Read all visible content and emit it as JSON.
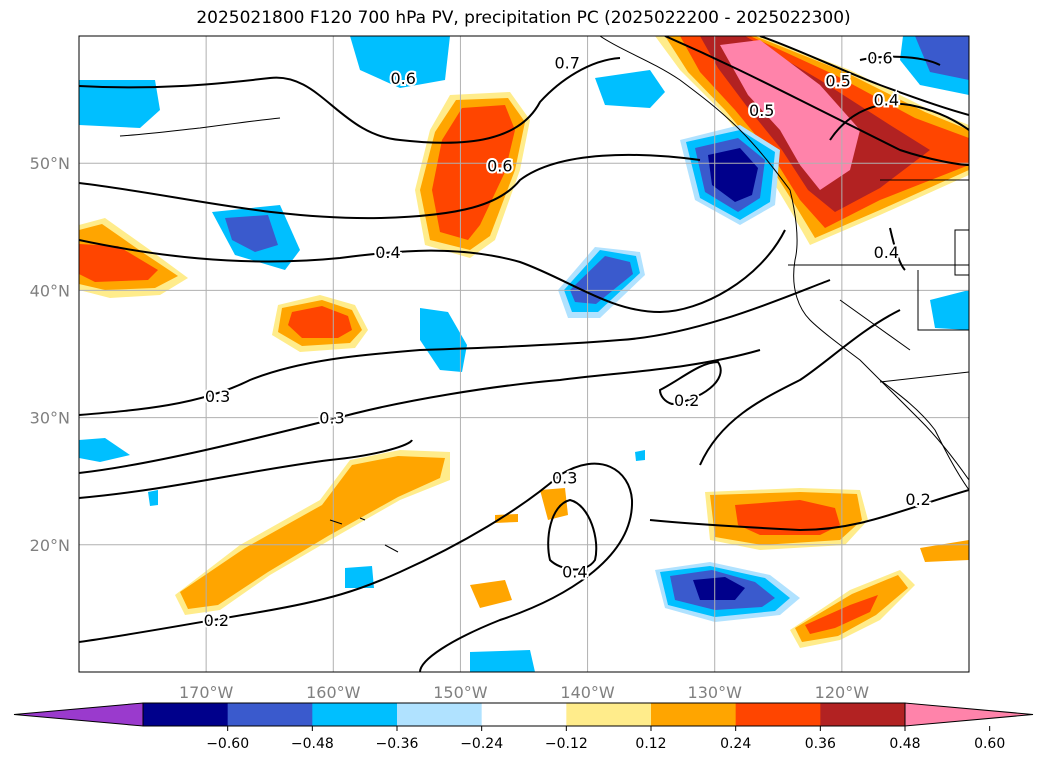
{
  "title": "2025021800 F120 700 hPa PV, precipitation PC (2025022200 - 2025022300)",
  "lat_labels": [
    {
      "text": "50°N",
      "lat": 50
    },
    {
      "text": "40°N",
      "lat": 40
    },
    {
      "text": "30°N",
      "lat": 30
    },
    {
      "text": "20°N",
      "lat": 20
    }
  ],
  "lon_labels": [
    {
      "text": "170°W",
      "lon": -170
    },
    {
      "text": "160°W",
      "lon": -160
    },
    {
      "text": "150°W",
      "lon": -150
    },
    {
      "text": "140°W",
      "lon": -140
    },
    {
      "text": "130°W",
      "lon": -130
    },
    {
      "text": "120°W",
      "lon": -120
    }
  ],
  "contour_labels": [
    {
      "text": "0.6",
      "lon": -154.5,
      "lat": 56.7
    },
    {
      "text": "0.7",
      "lon": -141.6,
      "lat": 57.9
    },
    {
      "text": "0.6",
      "lon": -146.9,
      "lat": 49.8
    },
    {
      "text": "0.4",
      "lon": -155.7,
      "lat": 43.0
    },
    {
      "text": "0.5",
      "lon": -126.3,
      "lat": 54.2
    },
    {
      "text": "0.5",
      "lon": -120.3,
      "lat": 56.5
    },
    {
      "text": "0.6",
      "lon": -117.0,
      "lat": 58.3
    },
    {
      "text": "0.4",
      "lon": -116.5,
      "lat": 55.0
    },
    {
      "text": "0.4",
      "lon": -116.5,
      "lat": 43.0
    },
    {
      "text": "0.3",
      "lon": -169.1,
      "lat": 31.7
    },
    {
      "text": "0.3",
      "lon": -160.1,
      "lat": 30.0
    },
    {
      "text": "0.2",
      "lon": -132.2,
      "lat": 31.4
    },
    {
      "text": "0.3",
      "lon": -141.8,
      "lat": 25.3
    },
    {
      "text": "0.4",
      "lon": -141.0,
      "lat": 17.9
    },
    {
      "text": "0.2",
      "lon": -169.2,
      "lat": 14.1
    },
    {
      "text": "0.2",
      "lon": -114.0,
      "lat": 23.6
    }
  ],
  "colorbar": {
    "colors": [
      "#9a3acd",
      "#00008b",
      "#3a5acd",
      "#00bfff",
      "#b0e2ff",
      "#ffffff",
      "#ffec8b",
      "#ffa500",
      "#ff4500",
      "#b22222",
      "#ff83aa"
    ],
    "tick_labels": [
      "−0.60",
      "−0.48",
      "−0.36",
      "−0.24",
      "−0.12",
      "0.12",
      "0.24",
      "0.36",
      "0.48",
      "0.60"
    ],
    "bounds": [
      -0.6,
      -0.48,
      -0.36,
      -0.24,
      -0.12,
      0.12,
      0.24,
      0.36,
      0.48,
      0.6
    ]
  }
}
